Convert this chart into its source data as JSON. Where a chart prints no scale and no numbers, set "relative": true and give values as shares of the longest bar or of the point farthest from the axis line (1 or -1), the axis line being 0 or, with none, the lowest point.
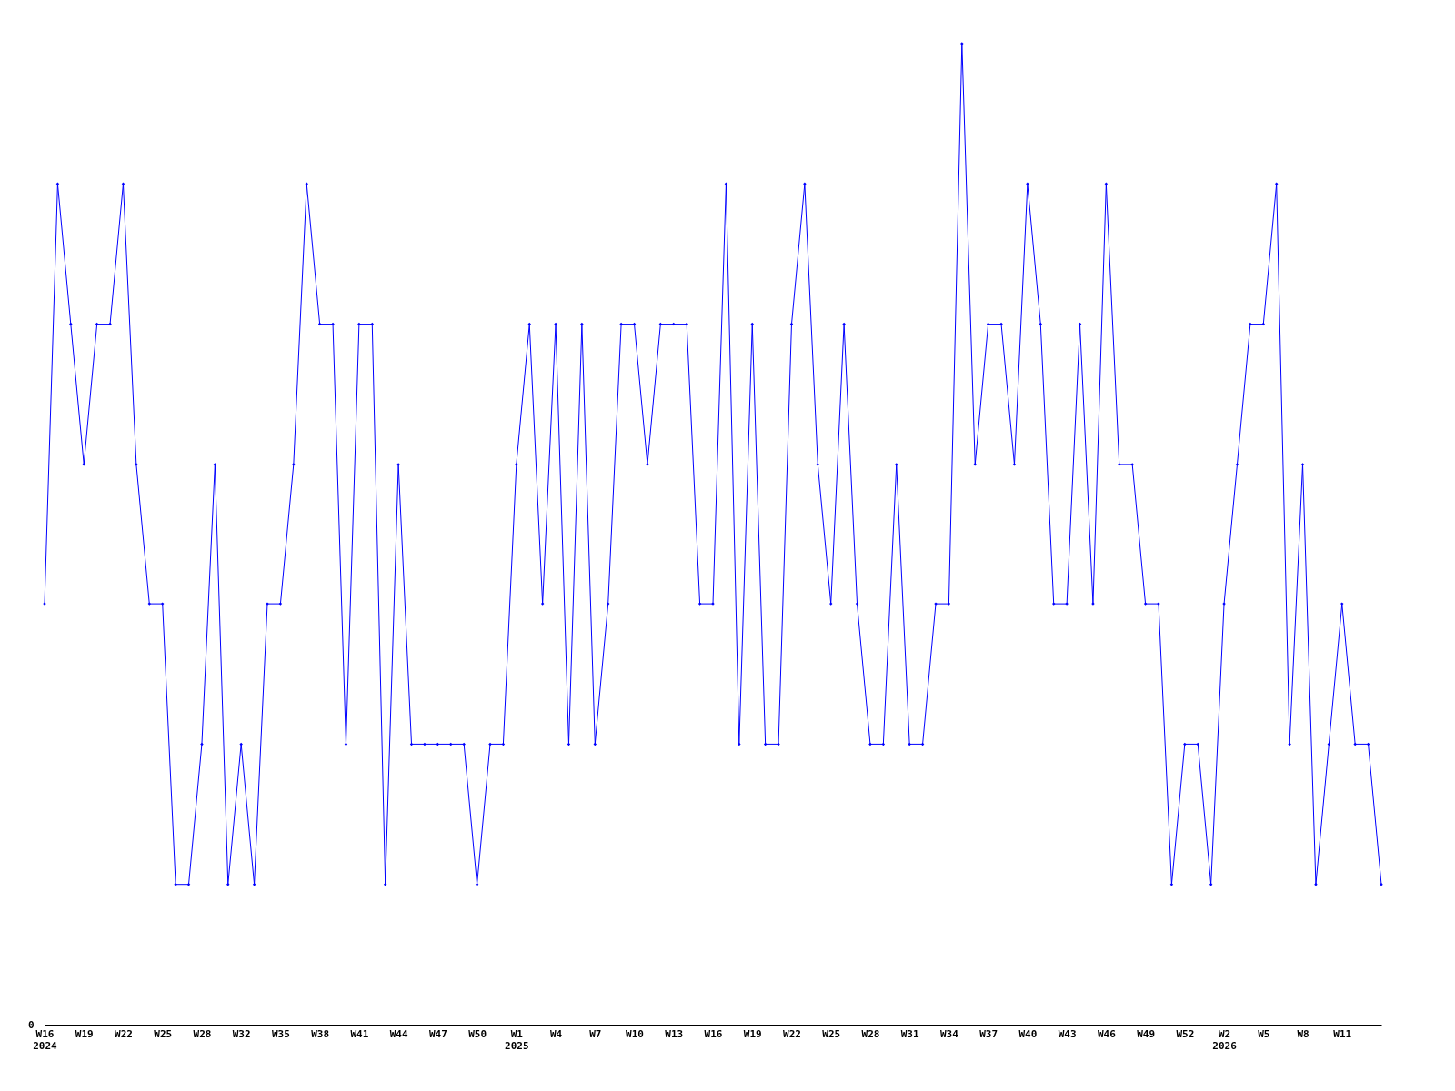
{
  "chart_data": {
    "type": "line",
    "relative": true,
    "color": "#0000ff",
    "marker": "diamond",
    "line_style": "solid",
    "grid": false,
    "annotations": [
      "0"
    ],
    "categories": [
      "W16\n2024",
      null,
      null,
      "W19",
      null,
      null,
      "W22",
      null,
      null,
      "W25",
      null,
      null,
      "W28",
      null,
      null,
      "W32",
      null,
      null,
      "W35",
      null,
      null,
      "W38",
      null,
      null,
      "W41",
      null,
      null,
      "W44",
      null,
      null,
      "W47",
      null,
      null,
      "W50",
      null,
      null,
      "W1\n2025",
      null,
      null,
      "W4",
      null,
      null,
      "W7",
      null,
      null,
      "W10",
      null,
      null,
      "W13",
      null,
      null,
      "W16",
      null,
      null,
      "W19",
      null,
      null,
      "W22",
      null,
      null,
      "W25",
      null,
      null,
      "W28",
      null,
      null,
      "W31",
      null,
      null,
      "W34",
      null,
      null,
      "W37",
      null,
      null,
      "W40",
      null,
      null,
      "W43",
      null,
      null,
      "W46",
      null,
      null,
      "W49",
      null,
      null,
      "W52",
      null,
      null,
      "W2\n2026",
      null,
      null,
      "W5",
      null,
      null,
      "W8",
      null,
      null,
      "W11",
      null,
      null,
      null
    ],
    "values": [
      0.429,
      0.857,
      0.714,
      0.571,
      0.714,
      0.714,
      0.857,
      0.571,
      0.429,
      0.429,
      0.143,
      0.143,
      0.286,
      0.571,
      0.143,
      0.286,
      0.143,
      0.429,
      0.429,
      0.571,
      0.857,
      0.714,
      0.714,
      0.286,
      0.714,
      0.714,
      0.143,
      0.571,
      0.286,
      0.286,
      0.286,
      0.286,
      0.286,
      0.143,
      0.286,
      0.286,
      0.571,
      0.714,
      0.429,
      0.714,
      0.286,
      0.714,
      0.286,
      0.429,
      0.714,
      0.714,
      0.571,
      0.714,
      0.714,
      0.714,
      0.429,
      0.429,
      0.857,
      0.286,
      0.714,
      0.286,
      0.286,
      0.714,
      0.857,
      0.571,
      0.429,
      0.714,
      0.429,
      0.286,
      0.286,
      0.571,
      0.286,
      0.286,
      0.429,
      0.429,
      1,
      0.571,
      0.714,
      0.714,
      0.571,
      0.857,
      0.714,
      0.429,
      0.429,
      0.714,
      0.429,
      0.857,
      0.571,
      0.571,
      0.429,
      0.429,
      0.143,
      0.286,
      0.286,
      0.143,
      0.429,
      0.571,
      0.714,
      0.714,
      0.857,
      0.286,
      0.571,
      0.143,
      0.286,
      0.429,
      0.286,
      0.286,
      0.143
    ]
  }
}
